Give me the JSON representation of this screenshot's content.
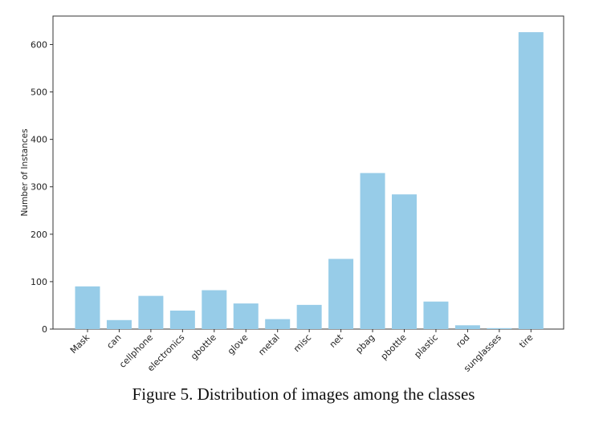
{
  "chart_data": {
    "type": "bar",
    "title": "",
    "xlabel": "",
    "ylabel": "Number of Instances",
    "categories": [
      "Mask",
      "can",
      "cellphone",
      "electronics",
      "gbottle",
      "glove",
      "metal",
      "misc",
      "net",
      "pbag",
      "pbottle",
      "plastic",
      "rod",
      "sunglasses",
      "tire"
    ],
    "values": [
      90,
      19,
      70,
      39,
      82,
      54,
      21,
      51,
      148,
      329,
      284,
      58,
      8,
      2,
      626
    ],
    "ylim": [
      0,
      660
    ],
    "yticks": [
      0,
      100,
      200,
      300,
      400,
      500,
      600
    ],
    "grid": false,
    "bar_color": "#97cce8"
  },
  "caption": "Figure 5. Distribution of images among the classes"
}
